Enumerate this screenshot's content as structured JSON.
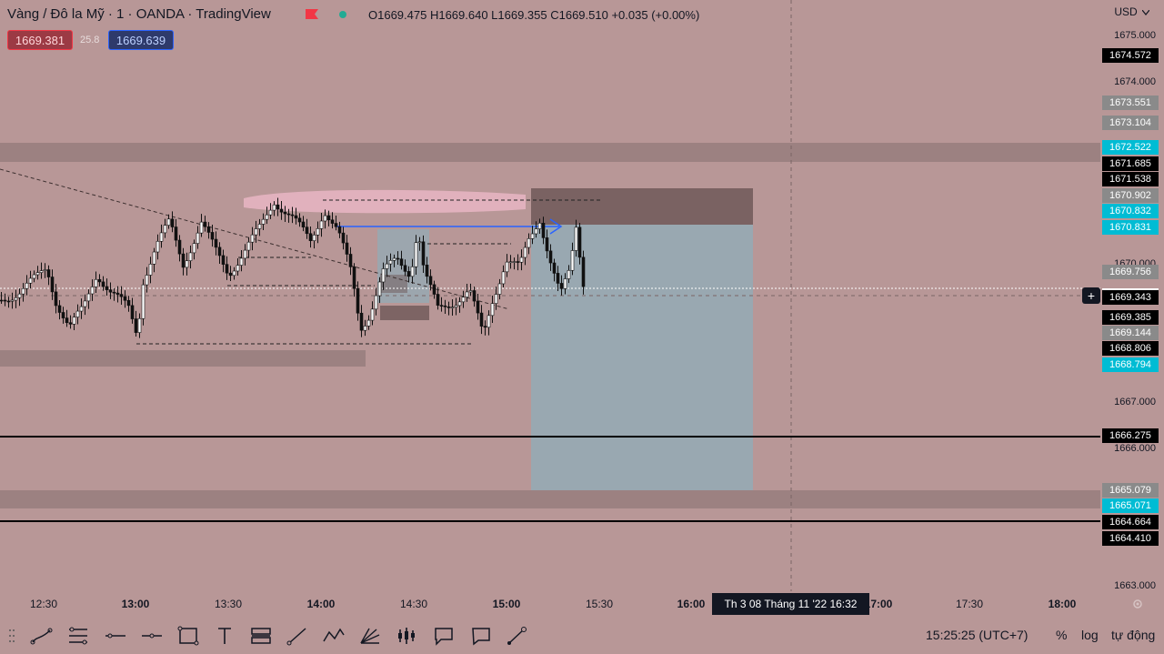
{
  "symbol": {
    "title": "Vàng / Đô la Mỹ · 1 · OANDA · TradingView",
    "ohlc": "O1669.475 H1669.640 L1669.355 C1669.510 +0.035 (+0.00%)",
    "sell_price": "1669.381",
    "spread": "25.8",
    "buy_price": "1669.639"
  },
  "currency": "USD",
  "currency_menu_icon": "chevron-down-icon",
  "price_ticks": [
    "1675.000",
    "1674.000",
    "1670.000",
    "1667.000",
    "1666.000",
    "1663.000"
  ],
  "price_labels": [
    {
      "text": "1674.572",
      "color": "#000000"
    },
    {
      "text": "1673.551",
      "color": "#8a8a8a"
    },
    {
      "text": "1673.104",
      "color": "#8a8a8a"
    },
    {
      "text": "1672.522",
      "color": "#00bcd4"
    },
    {
      "text": "1671.685",
      "color": "#000000"
    },
    {
      "text": "1671.538",
      "color": "#000000"
    },
    {
      "text": "1670.902",
      "color": "#8a8a8a"
    },
    {
      "text": "1670.832",
      "color": "#00bcd4"
    },
    {
      "text": "1670.831",
      "color": "#00bcd4"
    },
    {
      "text": "1669.756",
      "color": "#8a8a8a"
    },
    {
      "text": "1669.343",
      "color": "#000000"
    },
    {
      "text": "1669.385",
      "color": "#000000"
    },
    {
      "text": "1669.144",
      "color": "#8a8a8a"
    },
    {
      "text": "1668.806",
      "color": "#000000"
    },
    {
      "text": "1668.794",
      "color": "#00bcd4"
    },
    {
      "text": "1666.275",
      "color": "#000000"
    },
    {
      "text": "1665.079",
      "color": "#8a8a8a"
    },
    {
      "text": "1665.071",
      "color": "#00bcd4"
    },
    {
      "text": "1664.664",
      "color": "#000000"
    },
    {
      "text": "1664.410",
      "color": "#000000"
    }
  ],
  "time_labels": [
    {
      "text": "12:30",
      "bold": false
    },
    {
      "text": "13:00",
      "bold": true
    },
    {
      "text": "13:30",
      "bold": false
    },
    {
      "text": "14:00",
      "bold": true
    },
    {
      "text": "14:30",
      "bold": false
    },
    {
      "text": "15:00",
      "bold": true
    },
    {
      "text": "15:30",
      "bold": false
    },
    {
      "text": "16:00",
      "bold": true
    },
    {
      "text": "17:00",
      "bold": true
    },
    {
      "text": "17:30",
      "bold": false
    },
    {
      "text": "18:00",
      "bold": true
    }
  ],
  "crosshair_time": "Th 3 08 Tháng 11 '22   16:32",
  "toolbar": [
    "trend-line-icon",
    "fib-retracement-icon",
    "horizontal-line-icon",
    "horizontal-ray-icon",
    "rectangle-icon",
    "text-icon",
    "long-position-icon",
    "ray-icon",
    "pattern-icon",
    "prediction-icon",
    "bars-pattern-icon",
    "callout-icon",
    "note-icon",
    "brush-icon"
  ],
  "status": {
    "clock": "15:25:25 (UTC+7)",
    "percent": "%",
    "log": "log",
    "auto": "tự động"
  },
  "colors": {
    "background": "#b89797",
    "accent_cyan": "#00bcd4",
    "sell_red": "#f23645",
    "buy_blue": "#2962ff",
    "target_zone": "#7fb6c6",
    "stop_zone": "#6e5858"
  }
}
